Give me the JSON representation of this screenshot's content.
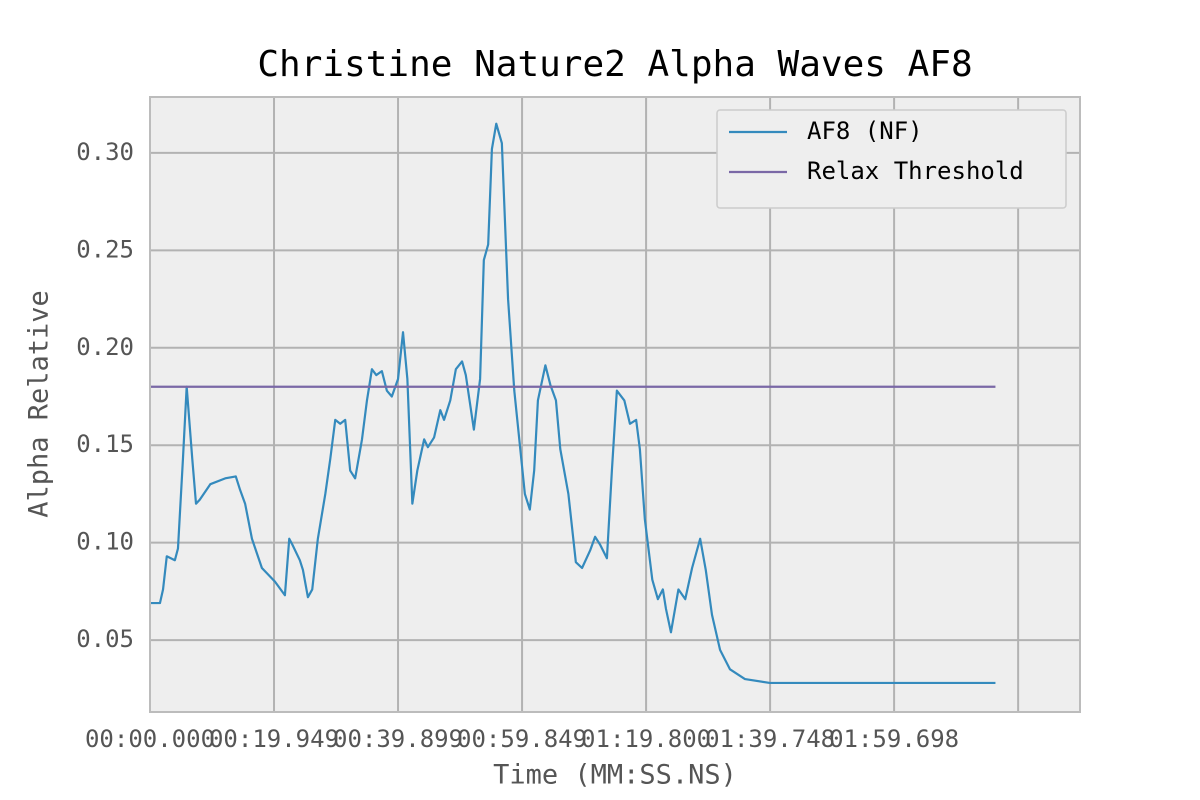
{
  "chart_data": {
    "type": "line",
    "title": "Christine Nature2 Alpha Waves AF8",
    "x_label": "Time (MM:SS.NS)",
    "y_label": "Alpha Relative",
    "xlim": [
      0,
      149.6
    ],
    "ylim": [
      0.0131,
      0.3287
    ],
    "xticks": [
      {
        "value": 0,
        "label": "00:00.000"
      },
      {
        "value": 19.949,
        "label": "00:19.949"
      },
      {
        "value": 39.899,
        "label": "00:39.899"
      },
      {
        "value": 59.849,
        "label": "00:59.849"
      },
      {
        "value": 79.8,
        "label": "01:19.800"
      },
      {
        "value": 99.748,
        "label": "01:39.748"
      },
      {
        "value": 119.698,
        "label": "01:59.698"
      },
      {
        "value": 139.648,
        "label": null
      }
    ],
    "yticks": [
      0.05,
      {
        "value": 0.1,
        "label": "0.10"
      },
      0.15,
      {
        "value": 0.2,
        "label": "0.20"
      },
      0.25,
      {
        "value": 0.3,
        "label": "0.30"
      }
    ],
    "grid": true,
    "legend": "upper right",
    "series": [
      {
        "name": "AF8 (NF)",
        "color": "#348abd",
        "x": [
          0,
          1.6,
          2.1,
          2.7,
          4.0,
          4.5,
          5.3,
          5.9,
          6.8,
          7.4,
          8.0,
          9.7,
          12.1,
          13.8,
          14.5,
          15.3,
          16.4,
          18.0,
          20.1,
          21.7,
          22.4,
          22.9,
          24.1,
          24.6,
          25.4,
          26.1,
          27.0,
          28.2,
          29.0,
          29.8,
          30.6,
          31.4,
          32.2,
          33.0,
          34.1,
          34.9,
          35.7,
          36.4,
          37.3,
          38.1,
          38.9,
          39.9,
          40.7,
          41.4,
          42.2,
          43.0,
          44.1,
          44.7,
          45.7,
          46.7,
          47.3,
          48.3,
          49.2,
          50.2,
          50.8,
          52.1,
          53.1,
          53.7,
          54.4,
          55.0,
          55.7,
          56.6,
          57.6,
          58.6,
          59.5,
          60.3,
          61.1,
          61.8,
          62.4,
          63.6,
          64.4,
          65.3,
          66.0,
          67.3,
          68.5,
          69.5,
          70.8,
          71.6,
          72.4,
          73.5,
          74.3,
          75.1,
          76.3,
          77.2,
          78.2,
          78.8,
          79.6,
          80.8,
          81.7,
          82.5,
          83.0,
          83.8,
          85.0,
          86.1,
          87.2,
          88.5,
          89.4,
          90.4,
          91.7,
          93.3,
          95.7,
          99.7,
          136.0
        ],
        "values": [
          0.069,
          0.069,
          0.076,
          0.093,
          0.091,
          0.097,
          0.143,
          0.18,
          0.143,
          0.12,
          0.122,
          0.13,
          0.133,
          0.134,
          0.127,
          0.12,
          0.102,
          0.087,
          0.08,
          0.073,
          0.102,
          0.099,
          0.091,
          0.086,
          0.072,
          0.076,
          0.102,
          0.125,
          0.143,
          0.163,
          0.161,
          0.163,
          0.137,
          0.133,
          0.153,
          0.173,
          0.189,
          0.186,
          0.188,
          0.178,
          0.175,
          0.184,
          0.208,
          0.184,
          0.12,
          0.137,
          0.153,
          0.149,
          0.154,
          0.168,
          0.163,
          0.173,
          0.189,
          0.193,
          0.186,
          0.158,
          0.184,
          0.245,
          0.253,
          0.302,
          0.315,
          0.305,
          0.225,
          0.178,
          0.15,
          0.125,
          0.117,
          0.137,
          0.173,
          0.191,
          0.181,
          0.173,
          0.148,
          0.125,
          0.09,
          0.087,
          0.096,
          0.103,
          0.099,
          0.092,
          0.137,
          0.178,
          0.173,
          0.161,
          0.163,
          0.148,
          0.112,
          0.081,
          0.071,
          0.076,
          0.066,
          0.054,
          0.076,
          0.071,
          0.087,
          0.102,
          0.086,
          0.063,
          0.045,
          0.035,
          0.03,
          0.028,
          0.028
        ]
      },
      {
        "name": "Relax Threshold",
        "color": "#7a68a6",
        "x": [
          0,
          136.0
        ],
        "values": [
          0.18,
          0.18
        ]
      }
    ]
  }
}
